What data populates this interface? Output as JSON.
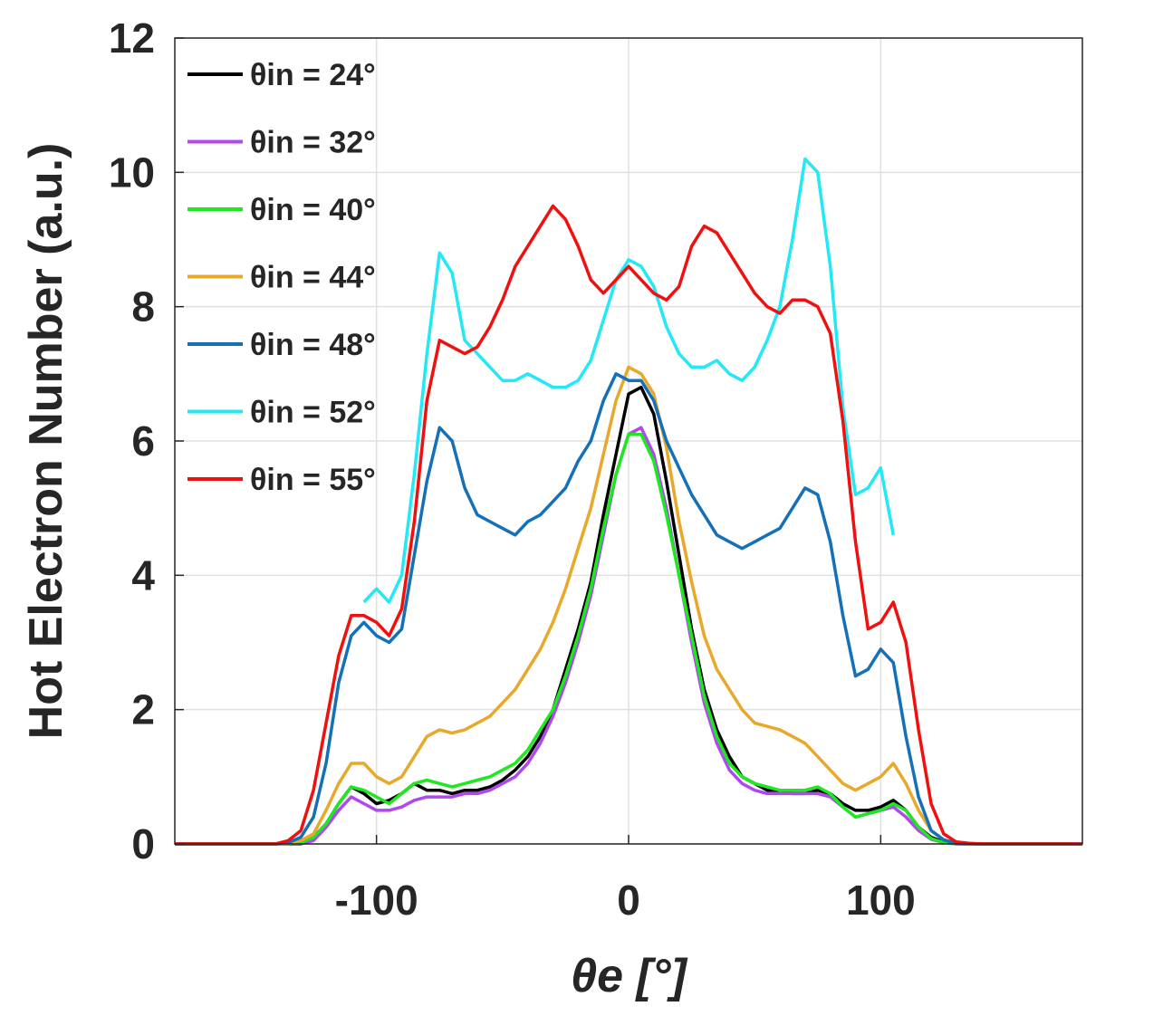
{
  "chart_data": {
    "type": "line",
    "xlabel": "θe [°]",
    "ylabel": "Hot Electron Number (a.u.)",
    "x": [
      -180,
      -140,
      -135,
      -130,
      -125,
      -120,
      -115,
      -110,
      -105,
      -100,
      -95,
      -90,
      -85,
      -80,
      -75,
      -70,
      -65,
      -60,
      -55,
      -50,
      -45,
      -40,
      -35,
      -30,
      -25,
      -20,
      -15,
      -10,
      -5,
      0,
      5,
      10,
      15,
      20,
      25,
      30,
      35,
      40,
      45,
      50,
      55,
      60,
      65,
      70,
      75,
      80,
      85,
      90,
      95,
      100,
      105,
      110,
      115,
      120,
      125,
      130,
      135,
      140,
      180
    ],
    "xlim": [
      -180,
      180
    ],
    "xticks": [
      -100,
      0,
      100
    ],
    "ylim": [
      0,
      12
    ],
    "yticks": [
      0,
      2,
      4,
      6,
      8,
      10,
      12
    ],
    "grid": true,
    "legend": "upper left",
    "series": [
      {
        "name": "θin = 24°",
        "color": "#000000",
        "values": [
          0,
          0,
          0,
          0,
          0.1,
          0.3,
          0.6,
          0.85,
          0.75,
          0.6,
          0.65,
          0.75,
          0.9,
          0.8,
          0.8,
          0.75,
          0.8,
          0.8,
          0.85,
          0.95,
          1.1,
          1.3,
          1.6,
          2.0,
          2.6,
          3.2,
          3.9,
          4.9,
          5.8,
          6.7,
          6.8,
          6.4,
          5.4,
          4.3,
          3.2,
          2.3,
          1.7,
          1.3,
          1.0,
          0.9,
          0.8,
          0.8,
          0.75,
          0.75,
          0.8,
          0.75,
          0.6,
          0.5,
          0.5,
          0.55,
          0.65,
          0.5,
          0.25,
          0.1,
          0.03,
          0,
          0,
          0,
          0
        ]
      },
      {
        "name": "θin = 32°",
        "color": "#b048f0",
        "values": [
          0,
          0,
          0,
          0,
          0.05,
          0.25,
          0.5,
          0.7,
          0.6,
          0.5,
          0.5,
          0.55,
          0.65,
          0.7,
          0.7,
          0.7,
          0.75,
          0.75,
          0.8,
          0.9,
          1.0,
          1.2,
          1.5,
          1.9,
          2.4,
          3.0,
          3.7,
          4.6,
          5.5,
          6.1,
          6.2,
          5.8,
          5.0,
          4.0,
          3.0,
          2.1,
          1.5,
          1.1,
          0.9,
          0.8,
          0.75,
          0.75,
          0.75,
          0.75,
          0.75,
          0.7,
          0.55,
          0.4,
          0.45,
          0.5,
          0.55,
          0.4,
          0.2,
          0.07,
          0.02,
          0,
          0,
          0,
          0
        ]
      },
      {
        "name": "θin = 40°",
        "color": "#1ee81e",
        "values": [
          0,
          0,
          0,
          0.02,
          0.1,
          0.3,
          0.6,
          0.85,
          0.8,
          0.7,
          0.6,
          0.75,
          0.9,
          0.95,
          0.9,
          0.85,
          0.9,
          0.95,
          1.0,
          1.1,
          1.2,
          1.4,
          1.7,
          2.0,
          2.5,
          3.1,
          3.8,
          4.7,
          5.5,
          6.1,
          6.1,
          5.7,
          4.9,
          4.0,
          3.1,
          2.2,
          1.6,
          1.2,
          1.0,
          0.9,
          0.85,
          0.8,
          0.8,
          0.8,
          0.85,
          0.75,
          0.55,
          0.4,
          0.45,
          0.5,
          0.6,
          0.5,
          0.25,
          0.08,
          0.02,
          0,
          0,
          0,
          0
        ]
      },
      {
        "name": "θin = 44°",
        "color": "#e8a82a",
        "values": [
          0,
          0,
          0.01,
          0.05,
          0.15,
          0.5,
          0.9,
          1.2,
          1.2,
          1.0,
          0.9,
          1.0,
          1.3,
          1.6,
          1.7,
          1.65,
          1.7,
          1.8,
          1.9,
          2.1,
          2.3,
          2.6,
          2.9,
          3.3,
          3.8,
          4.4,
          5.0,
          5.8,
          6.6,
          7.1,
          7.0,
          6.7,
          5.9,
          4.8,
          3.9,
          3.1,
          2.6,
          2.3,
          2.0,
          1.8,
          1.75,
          1.7,
          1.6,
          1.5,
          1.3,
          1.1,
          0.9,
          0.8,
          0.9,
          1.0,
          1.2,
          0.9,
          0.5,
          0.2,
          0.06,
          0.01,
          0,
          0,
          0
        ]
      },
      {
        "name": "θin = 48°",
        "color": "#1470b8",
        "values": [
          0,
          0,
          0.02,
          0.1,
          0.4,
          1.2,
          2.4,
          3.1,
          3.3,
          3.1,
          3.0,
          3.2,
          4.3,
          5.4,
          6.2,
          6.0,
          5.3,
          4.9,
          4.8,
          4.7,
          4.6,
          4.8,
          4.9,
          5.1,
          5.3,
          5.7,
          6.0,
          6.6,
          7.0,
          6.9,
          6.9,
          6.6,
          6.0,
          5.6,
          5.2,
          4.9,
          4.6,
          4.5,
          4.4,
          4.5,
          4.6,
          4.7,
          5.0,
          5.3,
          5.2,
          4.5,
          3.4,
          2.5,
          2.6,
          2.9,
          2.7,
          1.6,
          0.7,
          0.2,
          0.06,
          0.01,
          0,
          0,
          0
        ]
      },
      {
        "name": "θin = 52°",
        "color": "#22e8f8",
        "values": [
          null,
          null,
          null,
          null,
          null,
          null,
          null,
          null,
          3.6,
          3.8,
          3.6,
          4.0,
          5.5,
          7.3,
          8.8,
          8.5,
          7.5,
          7.3,
          7.1,
          6.9,
          6.9,
          7.0,
          6.9,
          6.8,
          6.8,
          6.9,
          7.2,
          7.8,
          8.4,
          8.7,
          8.6,
          8.3,
          7.7,
          7.3,
          7.1,
          7.1,
          7.2,
          7.0,
          6.9,
          7.1,
          7.5,
          8.0,
          9.0,
          10.2,
          10.0,
          8.6,
          6.5,
          5.2,
          5.3,
          5.6,
          4.6,
          null,
          null,
          null,
          null,
          null,
          null,
          null,
          null
        ]
      },
      {
        "name": "θin = 55°",
        "color": "#f01010",
        "values": [
          0,
          0,
          0.05,
          0.2,
          0.8,
          1.8,
          2.8,
          3.4,
          3.4,
          3.3,
          3.1,
          3.5,
          4.8,
          6.6,
          7.5,
          7.4,
          7.3,
          7.4,
          7.7,
          8.1,
          8.6,
          8.9,
          9.2,
          9.5,
          9.3,
          8.9,
          8.4,
          8.2,
          8.4,
          8.6,
          8.4,
          8.2,
          8.1,
          8.3,
          8.9,
          9.2,
          9.1,
          8.8,
          8.5,
          8.2,
          8.0,
          7.9,
          8.1,
          8.1,
          8.0,
          7.6,
          6.3,
          4.5,
          3.2,
          3.3,
          3.6,
          3.0,
          1.7,
          0.6,
          0.15,
          0.03,
          0.01,
          0,
          0
        ]
      }
    ]
  }
}
